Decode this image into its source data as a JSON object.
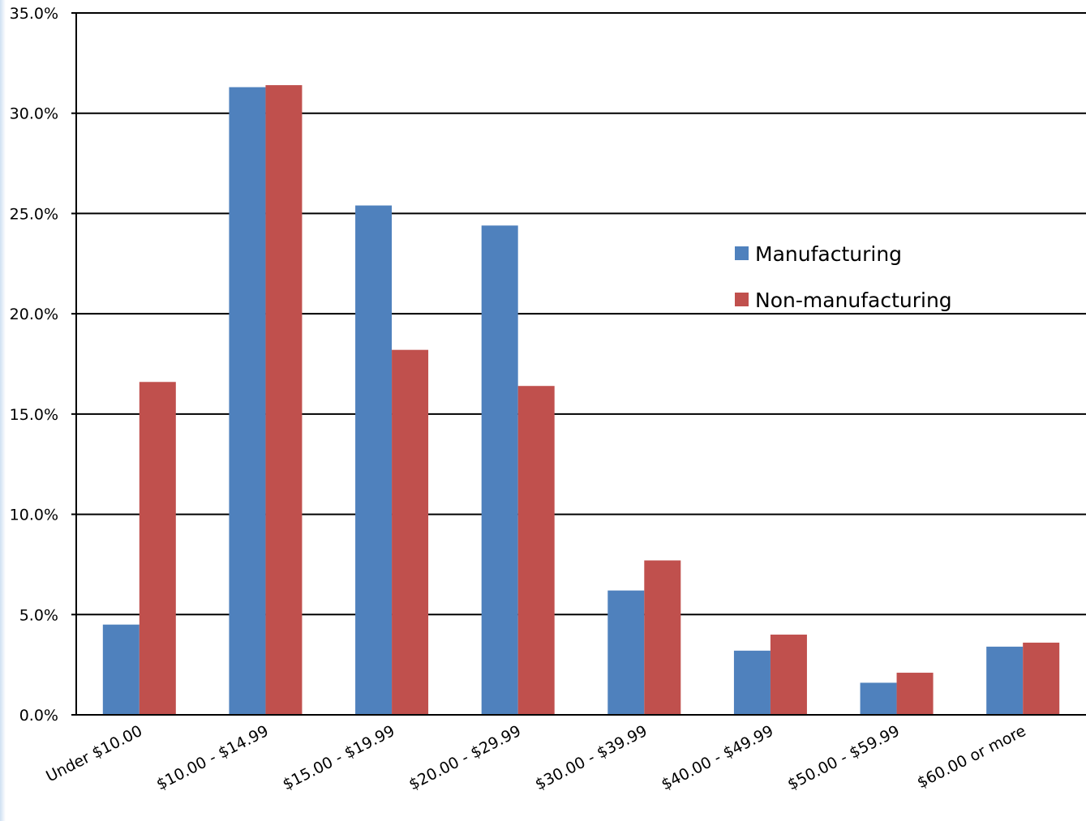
{
  "chart_data": {
    "type": "bar",
    "title": "",
    "xlabel": "",
    "ylabel": "",
    "categories": [
      "Under $10.00",
      "$10.00 - $14.99",
      "$15.00 - $19.99",
      "$20.00 - $29.99",
      "$30.00 - $39.99",
      "$40.00 - $49.99",
      "$50.00 - $59.99",
      "$60.00 or more"
    ],
    "series": [
      {
        "name": "Manufacturing",
        "color": "#4f81bd",
        "values": [
          4.5,
          31.3,
          25.4,
          24.4,
          6.2,
          3.2,
          1.6,
          3.4
        ]
      },
      {
        "name": "Non-manufacturing",
        "color": "#c0504d",
        "values": [
          16.6,
          31.4,
          18.2,
          16.4,
          7.7,
          4.0,
          2.1,
          3.6
        ]
      }
    ],
    "ylim": [
      0,
      35
    ],
    "yticks": [
      "0.0%",
      "5.0%",
      "10.0%",
      "15.0%",
      "20.0%",
      "25.0%",
      "30.0%",
      "35.0%"
    ],
    "grid": true,
    "legend_position": "right"
  }
}
